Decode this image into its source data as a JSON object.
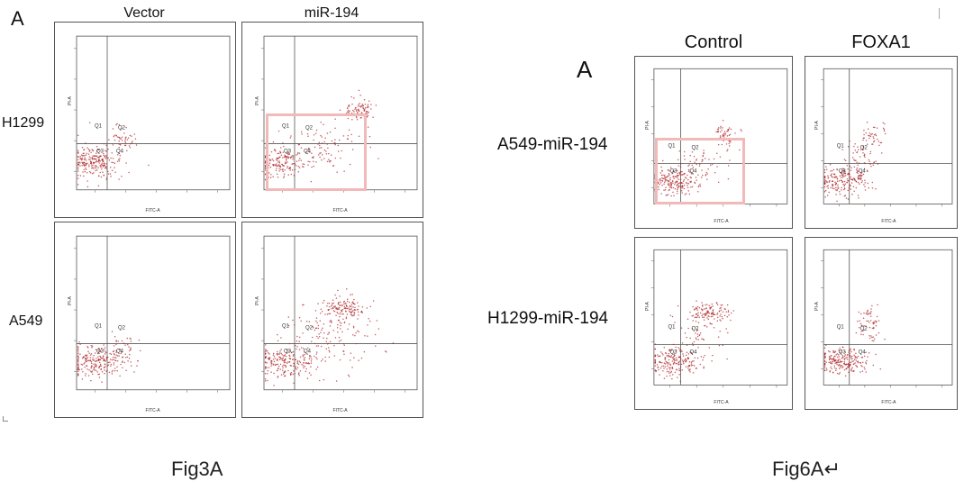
{
  "left_figure": {
    "panel_letter": "A",
    "columns": [
      "Vector",
      "miR-194"
    ],
    "rows": [
      "H1299",
      "A549"
    ],
    "caption": "Fig3A"
  },
  "right_figure": {
    "panel_letter": "A",
    "columns": [
      "Control",
      "FOXA1"
    ],
    "rows": [
      "A549-miR-194",
      "H1299-miR-194"
    ],
    "caption": "Fig6A↵"
  },
  "plot_text": {
    "q1": "Q1",
    "q2": "Q2",
    "q3": "Q3",
    "q4": "Q4",
    "x_axis": "FITC-A",
    "y_axis": "PI-A"
  },
  "colors": {
    "dots": "#b0262a",
    "highlight": "#f2b9b9",
    "frame": "#555555"
  }
}
